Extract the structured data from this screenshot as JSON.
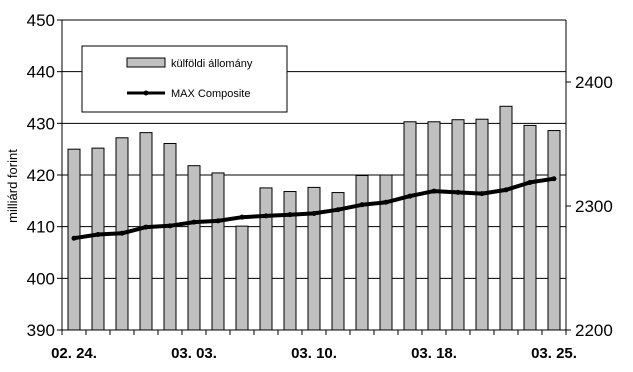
{
  "chart_data": {
    "type": "bar+line",
    "categories": [
      "02. 24.",
      "",
      "",
      "",
      "",
      "03. 03.",
      "",
      "",
      "",
      "",
      "03. 10.",
      "",
      "",
      "",
      "",
      "03. 18.",
      "",
      "",
      "",
      "",
      "03. 25."
    ],
    "x_tick_labels": [
      "02. 24.",
      "03. 03.",
      "03. 10.",
      "03. 18.",
      "03. 25."
    ],
    "ylabel": "milliárd forint",
    "y_left": {
      "min": 390,
      "max": 450,
      "ticks": [
        "390",
        "400",
        "410",
        "420",
        "430",
        "440",
        "450"
      ]
    },
    "y_right": {
      "min": 2200,
      "max": 2450,
      "ticks": [
        "2200",
        "2300",
        "2400"
      ]
    },
    "grid": true,
    "legend_position": "top-left",
    "series": [
      {
        "name": "külföldi állomány",
        "type": "bar",
        "axis": "left",
        "color": "#c0c0c0",
        "values": [
          425.0,
          425.2,
          427.2,
          428.2,
          426.1,
          421.8,
          420.4,
          410.1,
          417.5,
          416.8,
          417.6,
          416.6,
          419.9,
          420.0,
          430.3,
          430.3,
          430.7,
          430.8,
          433.3,
          429.6,
          428.6
        ]
      },
      {
        "name": "MAX Composite",
        "type": "line",
        "axis": "right",
        "color": "#000000",
        "values": [
          2274,
          2277,
          2278,
          2283,
          2284,
          2287,
          2288,
          2291,
          2292,
          2293,
          2294,
          2297,
          2301,
          2303,
          2308,
          2312,
          2311,
          2310,
          2313,
          2319,
          2322
        ]
      }
    ]
  }
}
